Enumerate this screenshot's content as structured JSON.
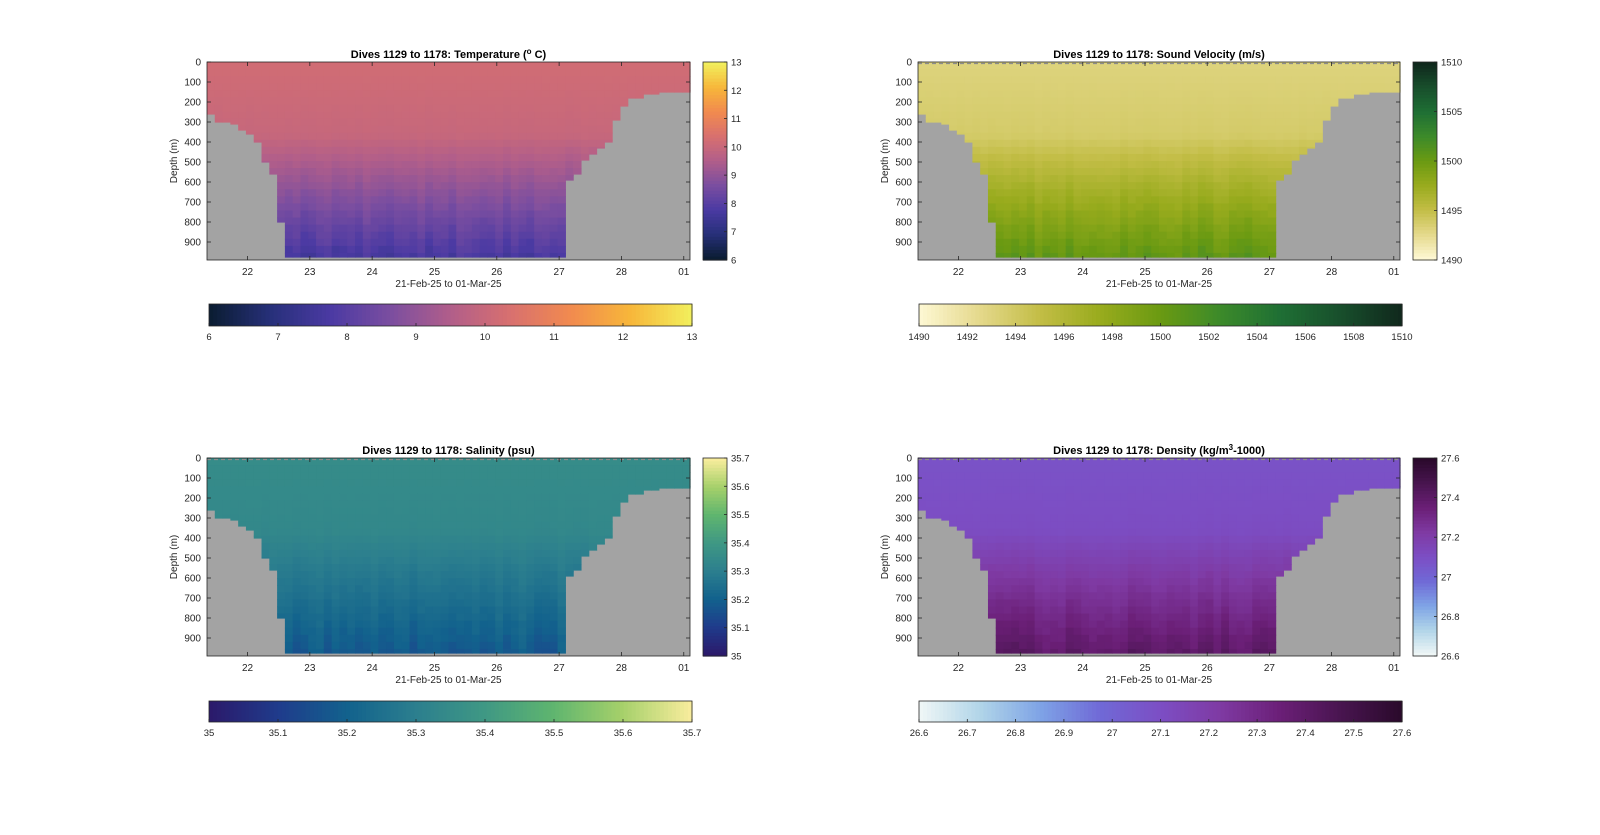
{
  "colors": {
    "land": "#a3a3a3",
    "axis": "#262626",
    "dashed_surface": "#8c8c8c"
  },
  "chart_data": [
    {
      "type": "heatmap",
      "id": "temperature",
      "title_prefix": "Dives 1129 to 1178: Temperature (",
      "title_sup": "o",
      "title_suffix": " C)",
      "ylabel": "Depth (m)",
      "xlabel": "21-Feb-25 to 01-Mar-25",
      "x_ticks": [
        "22",
        "23",
        "24",
        "25",
        "26",
        "27",
        "28",
        "01"
      ],
      "y_ticks": [
        "0",
        "100",
        "200",
        "300",
        "400",
        "500",
        "600",
        "700",
        "800",
        "900"
      ],
      "ylim": [
        0,
        990
      ],
      "colorbar_range": [
        6,
        13
      ],
      "colorbar_ticks": [
        "6",
        "7",
        "8",
        "9",
        "10",
        "11",
        "12",
        "13"
      ],
      "colormap": [
        "#0b1d33",
        "#27307a",
        "#4b3aa3",
        "#7b4ea0",
        "#b15e8a",
        "#d8706f",
        "#f18a4f",
        "#f7b63a",
        "#f2ee5c"
      ],
      "surface_value": 10.2,
      "deep_value": 7.5,
      "surface_dashed": false
    },
    {
      "type": "heatmap",
      "id": "sound-velocity",
      "title_prefix": "Dives 1129 to 1178: Sound Velocity (m/s)",
      "title_sup": "",
      "title_suffix": "",
      "ylabel": "Depth (m)",
      "xlabel": "21-Feb-25 to 01-Mar-25",
      "x_ticks": [
        "22",
        "23",
        "24",
        "25",
        "26",
        "27",
        "28",
        "01"
      ],
      "y_ticks": [
        "0",
        "100",
        "200",
        "300",
        "400",
        "500",
        "600",
        "700",
        "800",
        "900"
      ],
      "ylim": [
        0,
        990
      ],
      "colorbar_range": [
        1490,
        1510
      ],
      "colorbar_ticks": [
        "1490",
        "1492",
        "1494",
        "1496",
        "1498",
        "1500",
        "1502",
        "1504",
        "1506",
        "1508",
        "1510"
      ],
      "colormap_vertical_ticks": [
        "1490",
        "1495",
        "1500",
        "1505",
        "1510"
      ],
      "colormap": [
        "#fdf7d2",
        "#e4d88a",
        "#c2bd45",
        "#98ab1d",
        "#6a9a12",
        "#3c8a2a",
        "#1f6f34",
        "#184f2c",
        "#10291d"
      ],
      "surface_value": 1493,
      "deep_value": 1501,
      "surface_dashed": true
    },
    {
      "type": "heatmap",
      "id": "salinity",
      "title_prefix": "Dives 1129 to 1178: Salinity (psu)",
      "title_sup": "",
      "title_suffix": "",
      "ylabel": "Depth (m)",
      "xlabel": "21-Feb-25 to 01-Mar-25",
      "x_ticks": [
        "22",
        "23",
        "24",
        "25",
        "26",
        "27",
        "28",
        "01"
      ],
      "y_ticks": [
        "0",
        "100",
        "200",
        "300",
        "400",
        "500",
        "600",
        "700",
        "800",
        "900"
      ],
      "ylim": [
        0,
        990
      ],
      "colorbar_range": [
        35,
        35.7
      ],
      "colorbar_ticks": [
        "35",
        "35.1",
        "35.2",
        "35.3",
        "35.4",
        "35.5",
        "35.6",
        "35.7"
      ],
      "colormap_vertical_ticks": [
        "35",
        "35.1",
        "35.2",
        "35.3",
        "35.4",
        "35.5",
        "35.6",
        "35.7"
      ],
      "colormap": [
        "#2b1a6b",
        "#1f3c8c",
        "#12628d",
        "#2c7f8e",
        "#3f9884",
        "#5fb56f",
        "#a5d06a",
        "#f7ec9c"
      ],
      "surface_value": 35.35,
      "deep_value": 35.17,
      "surface_dashed": true
    },
    {
      "type": "heatmap",
      "id": "density",
      "title_prefix": "Dives 1129 to 1178: Density (kg/m",
      "title_sup": "3",
      "title_suffix": "-1000)",
      "ylabel": "Depth (m)",
      "xlabel": "21-Feb-25 to 01-Mar-25",
      "x_ticks": [
        "22",
        "23",
        "24",
        "25",
        "26",
        "27",
        "28",
        "01"
      ],
      "y_ticks": [
        "0",
        "100",
        "200",
        "300",
        "400",
        "500",
        "600",
        "700",
        "800",
        "900"
      ],
      "ylim": [
        0,
        990
      ],
      "colorbar_range": [
        26.6,
        27.6
      ],
      "colorbar_ticks": [
        "26.6",
        "26.7",
        "26.8",
        "26.9",
        "27",
        "27.1",
        "27.2",
        "27.3",
        "27.4",
        "27.5",
        "27.6"
      ],
      "colormap_vertical_ticks": [
        "26.6",
        "26.8",
        "27",
        "27.2",
        "27.4",
        "27.6"
      ],
      "colormap": [
        "#eef6f6",
        "#b0d4e8",
        "#7ea3e6",
        "#7069d6",
        "#7c4ec4",
        "#7f3aa3",
        "#6b1f77",
        "#491550",
        "#2b0a2c"
      ],
      "surface_value": 27.08,
      "deep_value": 27.42,
      "surface_dashed": true
    }
  ]
}
